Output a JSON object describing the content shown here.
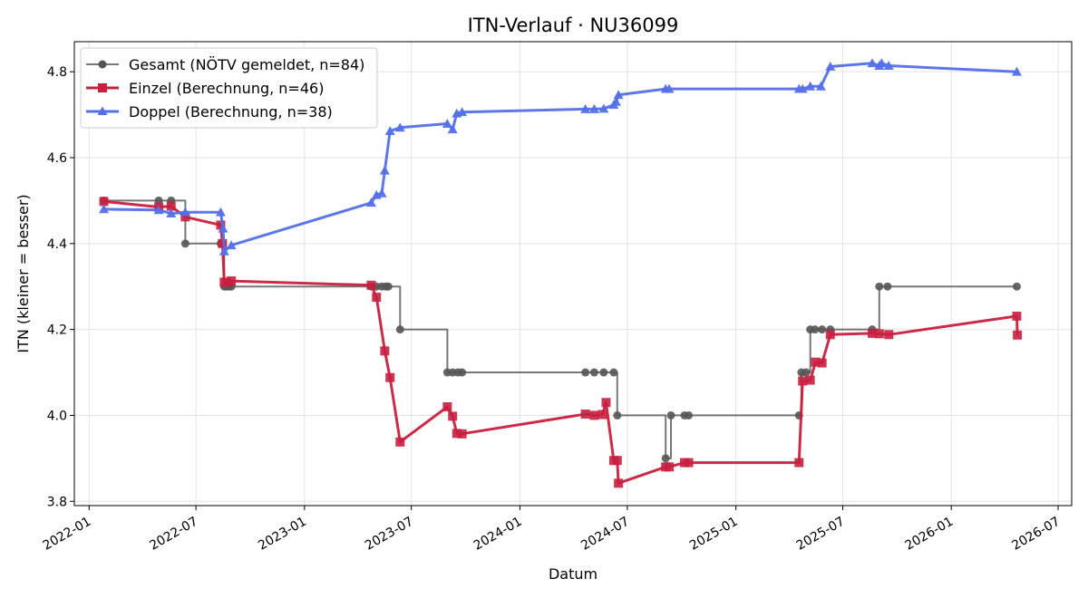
{
  "chart_data": {
    "type": "line",
    "title": "ITN-Verlauf · NU36099",
    "xlabel": "Datum",
    "ylabel": "ITN  (kleiner = besser)",
    "x_type": "date",
    "xlim": [
      "2021-12-07",
      "2026-07-24"
    ],
    "ylim": [
      3.79,
      4.87
    ],
    "x_ticks": [
      "2022-01-01",
      "2022-07-01",
      "2023-01-01",
      "2023-07-01",
      "2024-01-01",
      "2024-07-01",
      "2025-01-01",
      "2025-07-01",
      "2026-01-01",
      "2026-07-01"
    ],
    "x_tick_labels": [
      "2022-01",
      "2022-07",
      "2023-01",
      "2023-07",
      "2024-01",
      "2024-07",
      "2025-01",
      "2025-07",
      "2026-01",
      "2026-07"
    ],
    "y_ticks": [
      3.8,
      4.0,
      4.2,
      4.4,
      4.6,
      4.8
    ],
    "y_tick_labels": [
      "3.8",
      "4.0",
      "4.2",
      "4.4",
      "4.6",
      "4.8"
    ],
    "grid": true,
    "legend_position": "top-left",
    "series": [
      {
        "name": "Gesamt (NÖTV gemeldet, n=84)",
        "color": "#555555",
        "marker": "circle",
        "x": [
          "2022-01-26",
          "2022-04-29",
          "2022-05-20",
          "2022-06-13",
          "2022-08-12",
          "2022-08-15",
          "2022-08-18",
          "2022-08-22",
          "2022-08-26",
          "2022-08-30",
          "2023-04-24",
          "2023-05-03",
          "2023-05-12",
          "2023-05-19",
          "2023-05-23",
          "2023-06-12",
          "2023-08-31",
          "2023-09-09",
          "2023-09-18",
          "2023-09-25",
          "2024-04-21",
          "2024-05-06",
          "2024-05-22",
          "2024-06-08",
          "2024-06-14",
          "2024-09-04",
          "2024-09-13",
          "2024-10-06",
          "2024-10-13",
          "2025-04-18",
          "2025-04-22",
          "2025-04-30",
          "2025-05-07",
          "2025-05-15",
          "2025-05-27",
          "2025-06-10",
          "2025-08-20",
          "2025-09-01",
          "2025-09-15",
          "2026-04-22"
        ],
        "values": [
          4.5,
          4.5,
          4.5,
          4.4,
          4.4,
          4.4,
          4.3,
          4.3,
          4.3,
          4.3,
          4.3,
          4.3,
          4.3,
          4.3,
          4.3,
          4.2,
          4.1,
          4.1,
          4.1,
          4.1,
          4.1,
          4.1,
          4.1,
          4.1,
          4.0,
          3.9,
          4.0,
          4.0,
          4.0,
          4.0,
          4.1,
          4.1,
          4.2,
          4.2,
          4.2,
          4.2,
          4.2,
          4.3,
          4.3,
          4.3
        ]
      },
      {
        "name": "Einzel (Berechnung, n=46)",
        "color": "#c8203f",
        "marker": "square",
        "x": [
          "2022-01-26",
          "2022-04-29",
          "2022-05-20",
          "2022-06-13",
          "2022-08-12",
          "2022-08-15",
          "2022-08-18",
          "2022-08-22",
          "2022-08-30",
          "2023-04-24",
          "2023-05-03",
          "2023-05-17",
          "2023-05-26",
          "2023-06-12",
          "2023-08-31",
          "2023-09-09",
          "2023-09-16",
          "2023-09-25",
          "2024-04-21",
          "2024-05-06",
          "2024-05-20",
          "2024-05-26",
          "2024-06-08",
          "2024-06-14",
          "2024-06-16",
          "2024-09-04",
          "2024-09-10",
          "2024-10-06",
          "2024-10-13",
          "2025-04-18",
          "2025-04-24",
          "2025-05-07",
          "2025-05-16",
          "2025-05-27",
          "2025-06-10",
          "2025-08-20",
          "2025-09-01",
          "2025-09-17",
          "2026-04-22",
          "2026-04-23"
        ],
        "values": [
          4.498,
          4.485,
          4.487,
          4.462,
          4.443,
          4.4,
          4.31,
          4.31,
          4.313,
          4.303,
          4.275,
          4.15,
          4.088,
          3.938,
          4.02,
          3.998,
          3.958,
          3.957,
          4.003,
          4.0,
          4.002,
          4.03,
          3.895,
          3.895,
          3.842,
          3.88,
          3.88,
          3.89,
          3.89,
          3.89,
          4.08,
          4.082,
          4.124,
          4.122,
          4.188,
          4.191,
          4.19,
          4.188,
          4.231,
          4.187
        ]
      },
      {
        "name": "Doppel (Berechnung, n=38)",
        "color": "#5470e8",
        "marker": "triangle",
        "x": [
          "2022-01-26",
          "2022-04-29",
          "2022-05-20",
          "2022-06-13",
          "2022-08-12",
          "2022-08-16",
          "2022-08-18",
          "2022-08-30",
          "2023-04-24",
          "2023-05-03",
          "2023-05-12",
          "2023-05-17",
          "2023-05-26",
          "2023-06-12",
          "2023-08-31",
          "2023-09-09",
          "2023-09-16",
          "2023-09-25",
          "2024-04-21",
          "2024-05-06",
          "2024-05-22",
          "2024-06-08",
          "2024-06-12",
          "2024-06-16",
          "2024-09-04",
          "2024-09-10",
          "2025-04-18",
          "2025-04-24",
          "2025-05-07",
          "2025-05-25",
          "2025-06-10",
          "2025-08-20",
          "2025-09-01",
          "2025-09-05",
          "2025-09-17",
          "2026-04-22"
        ],
        "values": [
          4.48,
          4.478,
          4.47,
          4.473,
          4.473,
          4.435,
          4.382,
          4.396,
          4.495,
          4.513,
          4.517,
          4.57,
          4.662,
          4.67,
          4.679,
          4.666,
          4.703,
          4.706,
          4.713,
          4.713,
          4.714,
          4.723,
          4.73,
          4.746,
          4.76,
          4.76,
          4.76,
          4.76,
          4.766,
          4.766,
          4.812,
          4.82,
          4.814,
          4.82,
          4.814,
          4.8
        ]
      }
    ]
  }
}
